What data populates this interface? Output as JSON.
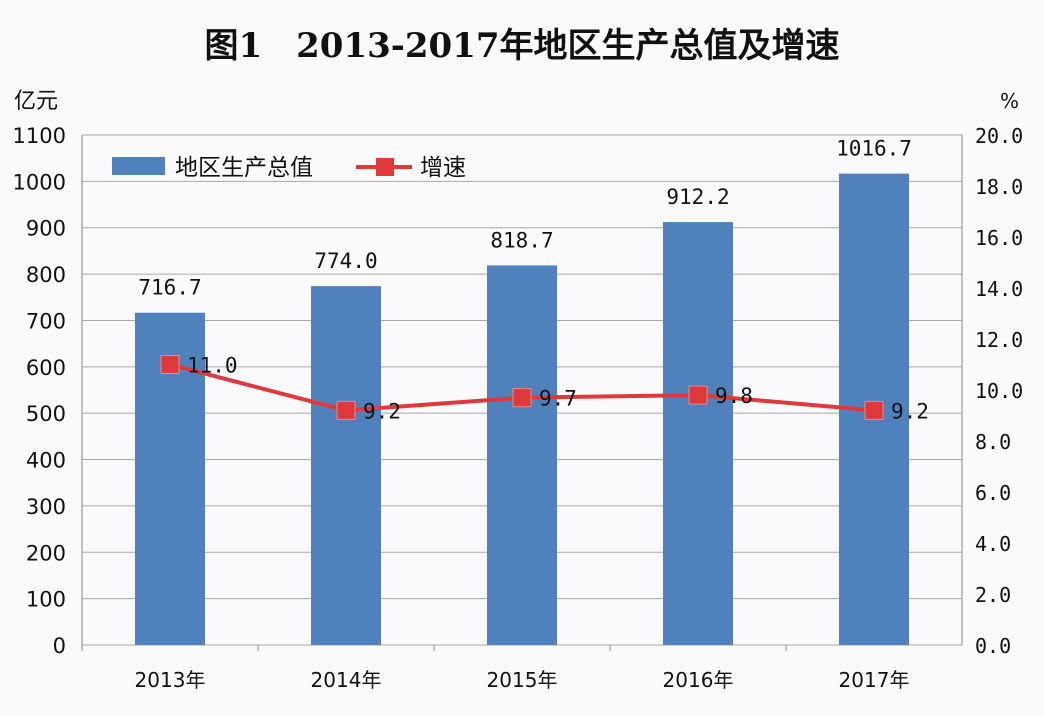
{
  "chart_data": {
    "type": "bar+line",
    "title": "图1　2013-2017年地区生产总值及增速",
    "categories": [
      "2013年",
      "2014年",
      "2015年",
      "2016年",
      "2017年"
    ],
    "series": [
      {
        "name": "地区生产总值",
        "type": "bar",
        "axis": "left",
        "values": [
          716.7,
          774.0,
          818.7,
          912.2,
          1016.7
        ],
        "labels": [
          "716.7",
          "774.0",
          "818.7",
          "912.2",
          "1016.7"
        ],
        "color": "#4F81BD"
      },
      {
        "name": "增速",
        "type": "line",
        "axis": "right",
        "values": [
          11.0,
          9.2,
          9.7,
          9.8,
          9.2
        ],
        "labels": [
          "11.0",
          "9.2",
          "9.7",
          "9.8",
          "9.2"
        ],
        "color": "#E0393B"
      }
    ],
    "ylabel_left": "亿元",
    "ylim_left": [
      0,
      1100
    ],
    "yticks_left": [
      "0",
      "100",
      "200",
      "300",
      "400",
      "500",
      "600",
      "700",
      "800",
      "900",
      "1000",
      "1100"
    ],
    "ylabel_right": "%",
    "ylim_right": [
      0,
      20
    ],
    "yticks_right": [
      "0.0",
      "2.0",
      "4.0",
      "6.0",
      "8.0",
      "10.0",
      "12.0",
      "14.0",
      "16.0",
      "18.0",
      "20.0"
    ],
    "grid": true,
    "legend": "top-left"
  }
}
